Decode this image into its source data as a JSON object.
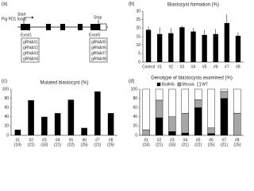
{
  "diagram": {
    "label": "(a)",
    "locus": "Pig PD1 locus",
    "start": "Start",
    "stop": "Stop",
    "exon_first": "Exon1",
    "exon_last": "Exon5",
    "grna_left": [
      "gRNA#1",
      "gRNA#2",
      "gRNA#3",
      "gRNA#4"
    ],
    "grna_right": [
      "gRNA#5",
      "gRNA#6",
      "gRNA#7",
      "gRNA#8"
    ]
  },
  "chart_data": [
    {
      "type": "bar",
      "label": "(b)",
      "title": "Blastocyst formation (%)",
      "categories": [
        "Control",
        "#1",
        "#2",
        "#3",
        "#4",
        "#5",
        "#6",
        "#7",
        "#8"
      ],
      "values": [
        19,
        16.5,
        17,
        20.5,
        18,
        16,
        16.5,
        23,
        15.5
      ],
      "errors": [
        2,
        4,
        3,
        1,
        2,
        3,
        3,
        5,
        2
      ],
      "color": "#000000",
      "ylim": [
        0,
        30
      ],
      "yticks": [
        0,
        5,
        10,
        15,
        20,
        25,
        30
      ]
    },
    {
      "type": "bar",
      "label": "(c)",
      "title": "Mutated blastocyst (%)",
      "categories": [
        "#1",
        "#2",
        "#3",
        "#4",
        "#5",
        "#6",
        "#7",
        "#8"
      ],
      "category_notes": [
        "(24)",
        "(21)",
        "(33)",
        "(21)",
        "(22)",
        "(25)",
        "(21)",
        "(25)"
      ],
      "values": [
        12,
        76,
        40,
        48,
        77,
        16,
        95,
        48
      ],
      "color": "#000000",
      "ylim": [
        0,
        100
      ],
      "yticks": [
        0,
        20,
        40,
        60,
        80,
        100
      ]
    },
    {
      "type": "stacked_bar",
      "label": "(d)",
      "title": "Genotype of blastocysts examined (%)",
      "categories": [
        "#1",
        "#2",
        "#3",
        "#4",
        "#5",
        "#6",
        "#7",
        "#8"
      ],
      "category_notes": [
        "(24)",
        "(21)",
        "(33)",
        "(21)",
        "(22)",
        "(25)",
        "(21)",
        "(25)"
      ],
      "series": [
        {
          "name": "Biallelic",
          "color": "#000000",
          "values": [
            0,
            38,
            8,
            5,
            60,
            4,
            80,
            0
          ]
        },
        {
          "name": "Mosaic",
          "color": "#a6a6a6",
          "values": [
            12,
            38,
            32,
            43,
            17,
            12,
            15,
            48
          ]
        },
        {
          "name": "WT",
          "color": "#ffffff",
          "values": [
            88,
            24,
            60,
            52,
            23,
            84,
            5,
            52
          ]
        }
      ],
      "legend": "top",
      "ylim": [
        0,
        100
      ],
      "yticks": [
        0,
        20,
        40,
        60,
        80,
        100
      ]
    }
  ]
}
